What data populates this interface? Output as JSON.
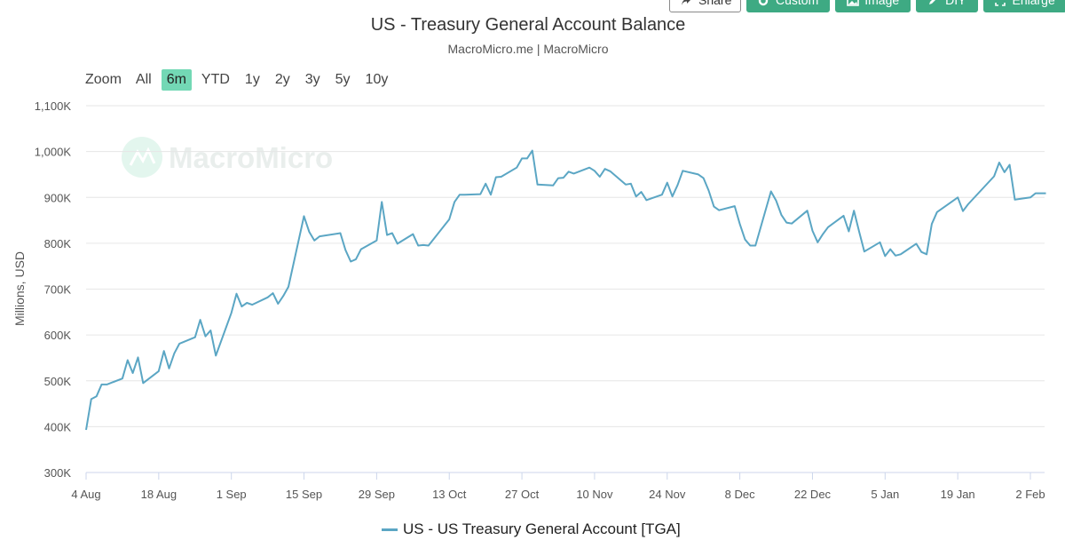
{
  "toolbar": {
    "share_label": "Share",
    "custom_label": "Custom",
    "image_label": "Image",
    "diy_label": "DIY",
    "enlarge_label": "Enlarge",
    "accent": "#3eaa83"
  },
  "header": {
    "title": "US - Treasury General Account Balance",
    "subtitle": "MacroMicro.me | MacroMicro"
  },
  "watermark": {
    "text": "MacroMicro"
  },
  "zoom": {
    "label": "Zoom",
    "options": [
      "All",
      "6m",
      "YTD",
      "1y",
      "2y",
      "3y",
      "5y",
      "10y"
    ],
    "selected": "6m",
    "active_color": "#73d8b5"
  },
  "chart_data": {
    "type": "line",
    "title": "US - Treasury General Account Balance",
    "subtitle": "MacroMicro.me | MacroMicro",
    "ylabel": "Millions, USD",
    "ylim": [
      300000,
      1100000
    ],
    "y_ticks": [
      300000,
      400000,
      500000,
      600000,
      700000,
      800000,
      900000,
      1000000,
      1100000
    ],
    "y_tick_labels": [
      "300K",
      "400K",
      "500K",
      "600K",
      "700K",
      "800K",
      "900K",
      "1,000K",
      "1,100K"
    ],
    "x_range": [
      "2023-08-04",
      "2024-02-05"
    ],
    "x_ticks": [
      "2023-08-04",
      "2023-08-18",
      "2023-09-01",
      "2023-09-15",
      "2023-09-29",
      "2023-10-13",
      "2023-10-27",
      "2023-11-10",
      "2023-11-24",
      "2023-12-08",
      "2023-12-22",
      "2024-01-05",
      "2024-01-19",
      "2024-02-02"
    ],
    "x_tick_labels": [
      "4 Aug",
      "18 Aug",
      "1 Sep",
      "15 Sep",
      "29 Sep",
      "13 Oct",
      "27 Oct",
      "10 Nov",
      "24 Nov",
      "8 Dec",
      "22 Dec",
      "5 Jan",
      "19 Jan",
      "2 Feb"
    ],
    "grid": true,
    "legend_position": "bottom-center",
    "series": [
      {
        "name": "US - US Treasury General Account [TGA]",
        "color": "#5ba6c4",
        "points": [
          [
            "2023-08-04",
            393000
          ],
          [
            "2023-08-05",
            460000
          ],
          [
            "2023-08-06",
            466000
          ],
          [
            "2023-08-07",
            492000
          ],
          [
            "2023-08-08",
            492000
          ],
          [
            "2023-08-11",
            505000
          ],
          [
            "2023-08-12",
            545000
          ],
          [
            "2023-08-13",
            517000
          ],
          [
            "2023-08-14",
            551000
          ],
          [
            "2023-08-15",
            495000
          ],
          [
            "2023-08-18",
            521000
          ],
          [
            "2023-08-19",
            565000
          ],
          [
            "2023-08-20",
            527000
          ],
          [
            "2023-08-21",
            560000
          ],
          [
            "2023-08-22",
            581000
          ],
          [
            "2023-08-25",
            595000
          ],
          [
            "2023-08-26",
            633000
          ],
          [
            "2023-08-27",
            597000
          ],
          [
            "2023-08-28",
            610000
          ],
          [
            "2023-08-29",
            555000
          ],
          [
            "2023-09-01",
            648000
          ],
          [
            "2023-09-02",
            690000
          ],
          [
            "2023-09-03",
            662000
          ],
          [
            "2023-09-04",
            670000
          ],
          [
            "2023-09-05",
            666000
          ],
          [
            "2023-09-08",
            682000
          ],
          [
            "2023-09-09",
            691000
          ],
          [
            "2023-09-10",
            668000
          ],
          [
            "2023-09-11",
            685000
          ],
          [
            "2023-09-12",
            705000
          ],
          [
            "2023-09-15",
            859000
          ],
          [
            "2023-09-16",
            825000
          ],
          [
            "2023-09-17",
            806000
          ],
          [
            "2023-09-18",
            815000
          ],
          [
            "2023-09-22",
            822000
          ],
          [
            "2023-09-23",
            785000
          ],
          [
            "2023-09-24",
            760000
          ],
          [
            "2023-09-25",
            765000
          ],
          [
            "2023-09-26",
            787000
          ],
          [
            "2023-09-29",
            806000
          ],
          [
            "2023-09-30",
            890000
          ],
          [
            "2023-10-01",
            818000
          ],
          [
            "2023-10-02",
            822000
          ],
          [
            "2023-10-03",
            799000
          ],
          [
            "2023-10-06",
            820000
          ],
          [
            "2023-10-07",
            795000
          ],
          [
            "2023-10-08",
            796000
          ],
          [
            "2023-10-09",
            795000
          ],
          [
            "2023-10-12",
            838000
          ],
          [
            "2023-10-13",
            852000
          ],
          [
            "2023-10-14",
            890000
          ],
          [
            "2023-10-15",
            906000
          ],
          [
            "2023-10-16",
            906000
          ],
          [
            "2023-10-19",
            907000
          ],
          [
            "2023-10-20",
            930000
          ],
          [
            "2023-10-21",
            906000
          ],
          [
            "2023-10-22",
            944000
          ],
          [
            "2023-10-23",
            945000
          ],
          [
            "2023-10-26",
            965000
          ],
          [
            "2023-10-27",
            985000
          ],
          [
            "2023-10-28",
            985000
          ],
          [
            "2023-10-29",
            1002000
          ],
          [
            "2023-10-30",
            928000
          ],
          [
            "2023-11-02",
            926000
          ],
          [
            "2023-11-03",
            942000
          ],
          [
            "2023-11-04",
            943000
          ],
          [
            "2023-11-05",
            956000
          ],
          [
            "2023-11-06",
            952000
          ],
          [
            "2023-11-09",
            965000
          ],
          [
            "2023-11-10",
            958000
          ],
          [
            "2023-11-11",
            945000
          ],
          [
            "2023-11-12",
            962000
          ],
          [
            "2023-11-13",
            957000
          ],
          [
            "2023-11-16",
            928000
          ],
          [
            "2023-11-17",
            930000
          ],
          [
            "2023-11-18",
            902000
          ],
          [
            "2023-11-19",
            912000
          ],
          [
            "2023-11-20",
            894000
          ],
          [
            "2023-11-23",
            906000
          ],
          [
            "2023-11-24",
            932000
          ],
          [
            "2023-11-25",
            902000
          ],
          [
            "2023-11-26",
            927000
          ],
          [
            "2023-11-27",
            958000
          ],
          [
            "2023-11-30",
            950000
          ],
          [
            "2023-12-01",
            942000
          ],
          [
            "2023-12-02",
            915000
          ],
          [
            "2023-12-03",
            880000
          ],
          [
            "2023-12-04",
            872000
          ],
          [
            "2023-12-07",
            881000
          ],
          [
            "2023-12-08",
            842000
          ],
          [
            "2023-12-09",
            808000
          ],
          [
            "2023-12-10",
            795000
          ],
          [
            "2023-12-11",
            795000
          ],
          [
            "2023-12-14",
            913000
          ],
          [
            "2023-12-15",
            893000
          ],
          [
            "2023-12-16",
            862000
          ],
          [
            "2023-12-17",
            845000
          ],
          [
            "2023-12-18",
            843000
          ],
          [
            "2023-12-21",
            871000
          ],
          [
            "2023-12-22",
            827000
          ],
          [
            "2023-12-23",
            802000
          ],
          [
            "2023-12-24",
            820000
          ],
          [
            "2023-12-25",
            835000
          ],
          [
            "2023-12-28",
            860000
          ],
          [
            "2023-12-29",
            826000
          ],
          [
            "2023-12-30",
            871000
          ],
          [
            "2023-12-31",
            825000
          ],
          [
            "2024-01-01",
            782000
          ],
          [
            "2024-01-04",
            802000
          ],
          [
            "2024-01-05",
            772000
          ],
          [
            "2024-01-06",
            787000
          ],
          [
            "2024-01-07",
            773000
          ],
          [
            "2024-01-08",
            776000
          ],
          [
            "2024-01-11",
            799000
          ],
          [
            "2024-01-12",
            781000
          ],
          [
            "2024-01-13",
            776000
          ],
          [
            "2024-01-14",
            842000
          ],
          [
            "2024-01-15",
            868000
          ],
          [
            "2024-01-19",
            900000
          ],
          [
            "2024-01-20",
            870000
          ],
          [
            "2024-01-21",
            885000
          ],
          [
            "2024-01-26",
            946000
          ],
          [
            "2024-01-27",
            976000
          ],
          [
            "2024-01-28",
            955000
          ],
          [
            "2024-01-29",
            971000
          ],
          [
            "2024-01-30",
            895000
          ],
          [
            "2024-02-02",
            900000
          ],
          [
            "2024-02-03",
            909000
          ],
          [
            "2024-02-05",
            909000
          ]
        ]
      }
    ]
  }
}
